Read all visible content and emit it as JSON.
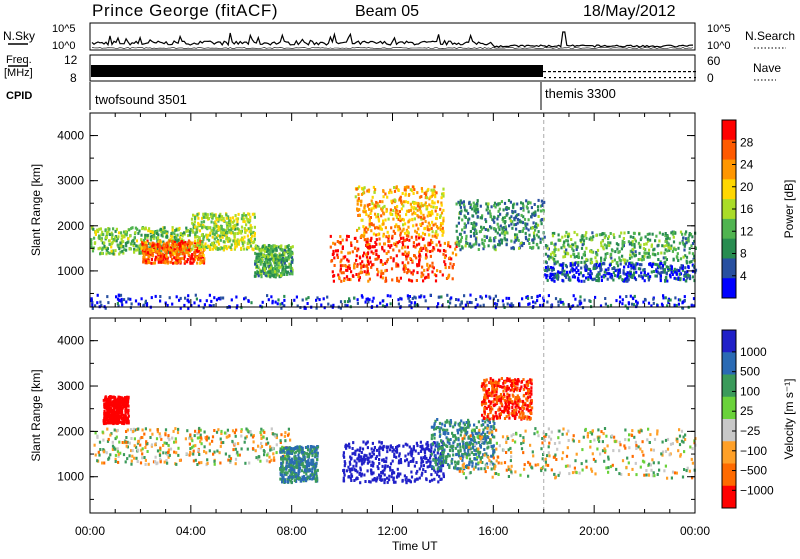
{
  "header": {
    "title": "Prince George (fitACF)",
    "beam": "Beam 05",
    "date": "18/May/2012"
  },
  "top_panels": {
    "nsky": {
      "label": "N.Sky",
      "ticks": [
        "10^5",
        "10^0"
      ]
    },
    "nsearch": {
      "label": "N.Search",
      "ticks": [
        "10^5",
        "10^0"
      ]
    },
    "freq": {
      "label_line1": "Freq.",
      "label_line2": "[MHz]",
      "ticks": [
        "12",
        "8"
      ]
    },
    "nave": {
      "label": "Nave",
      "ticks": [
        "60",
        "0"
      ]
    },
    "cpid": {
      "label": "CPID",
      "modes": [
        {
          "name": "twofsound 3501",
          "start_hour": 0
        },
        {
          "name": "themis 3300",
          "start_hour": 18
        }
      ]
    }
  },
  "chart_data": [
    {
      "type": "heatmap",
      "title": "",
      "ylabel": "Slant Range [km]",
      "xlabel": "",
      "xlim": [
        0,
        24
      ],
      "ylim": [
        200,
        4500
      ],
      "y_ticks": [
        "1000",
        "2000",
        "3000",
        "4000"
      ],
      "colorbar": {
        "label": "Power [dB]",
        "ticks": [
          "28",
          "24",
          "20",
          "16",
          "12",
          "8",
          "4"
        ],
        "colors": [
          "#ff0000",
          "#ff5a00",
          "#ff9600",
          "#ffd700",
          "#aadc28",
          "#50b450",
          "#288c50",
          "#2850a0",
          "#0000ff"
        ]
      },
      "regions": [
        {
          "x": [
            0,
            4
          ],
          "y": [
            1400,
            2000
          ],
          "value": 14
        },
        {
          "x": [
            2,
            4.5
          ],
          "y": [
            1200,
            1700
          ],
          "value": 26
        },
        {
          "x": [
            4,
            6.5
          ],
          "y": [
            1500,
            2300
          ],
          "value": 16
        },
        {
          "x": [
            6.5,
            8
          ],
          "y": [
            900,
            1600
          ],
          "value": 12
        },
        {
          "x": [
            9.5,
            14.5
          ],
          "y": [
            800,
            1800
          ],
          "value": 28
        },
        {
          "x": [
            10.5,
            14
          ],
          "y": [
            1800,
            2900
          ],
          "value": 22
        },
        {
          "x": [
            14.5,
            18
          ],
          "y": [
            1500,
            2600
          ],
          "value": 10
        },
        {
          "x": [
            18,
            24
          ],
          "y": [
            1200,
            1900
          ],
          "value": 12
        },
        {
          "x": [
            18,
            24
          ],
          "y": [
            800,
            1200
          ],
          "value": 6
        },
        {
          "x": [
            0,
            24
          ],
          "y": [
            200,
            500
          ],
          "value": 4
        }
      ]
    },
    {
      "type": "heatmap",
      "title": "",
      "ylabel": "Slant Range [km]",
      "xlabel": "Time UT",
      "xlim": [
        0,
        24
      ],
      "ylim": [
        200,
        4500
      ],
      "x_ticks": [
        "00:00",
        "04:00",
        "08:00",
        "12:00",
        "16:00",
        "20:00",
        "00:00"
      ],
      "y_ticks": [
        "1000",
        "2000",
        "3000",
        "4000"
      ],
      "colorbar": {
        "label": "Velocity [m s⁻¹]",
        "ticks": [
          "1000",
          "500",
          "100",
          "25",
          "−25",
          "−100",
          "−500",
          "−1000"
        ],
        "colors": [
          "#2020c8",
          "#2a6ab4",
          "#3a9a5a",
          "#6ad23a",
          "#c8c8c8",
          "#ffa028",
          "#ff6a00",
          "#ff0000"
        ]
      },
      "regions": [
        {
          "x": [
            0,
            8
          ],
          "y": [
            1300,
            2100
          ],
          "value": 0
        },
        {
          "x": [
            7.5,
            9
          ],
          "y": [
            900,
            1700
          ],
          "value": 300
        },
        {
          "x": [
            10,
            14
          ],
          "y": [
            900,
            1800
          ],
          "value": 1000
        },
        {
          "x": [
            13.5,
            16
          ],
          "y": [
            1200,
            2300
          ],
          "value": 300
        },
        {
          "x": [
            15.5,
            17.5
          ],
          "y": [
            2300,
            3200
          ],
          "value": -500
        },
        {
          "x": [
            14.5,
            24
          ],
          "y": [
            1000,
            2100
          ],
          "value": 0
        },
        {
          "x": [
            0.5,
            1.5
          ],
          "y": [
            2200,
            2800
          ],
          "value": -1000
        }
      ]
    }
  ]
}
